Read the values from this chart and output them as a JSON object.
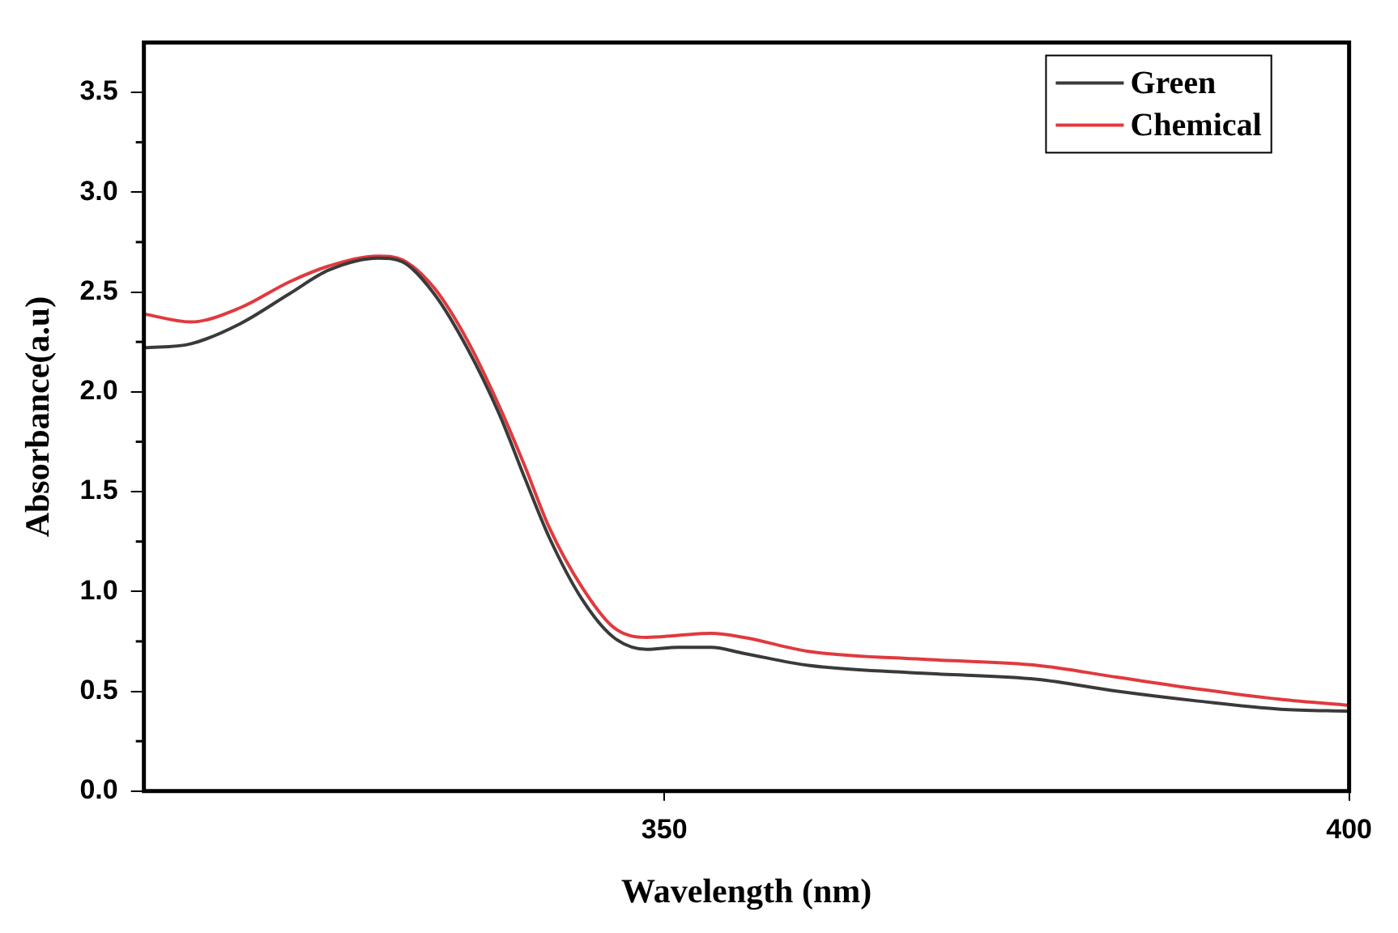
{
  "chart_data": {
    "type": "line",
    "xlabel": "Wavelength (nm)",
    "ylabel": "Absorbance(a.u)",
    "x": [
      312,
      315.4,
      319,
      322.6,
      325.5,
      329.1,
      330.9,
      333.2,
      335.6,
      338,
      339.8,
      341.6,
      344,
      346.3,
      348.7,
      351,
      353.4,
      355.8,
      360.5,
      368.9,
      377.2,
      383.1,
      389.1,
      395,
      400
    ],
    "xlim": [
      312,
      400
    ],
    "xticks": [
      350,
      400
    ],
    "ylim": [
      0,
      3.75
    ],
    "yticks": [
      {
        "value": 0,
        "label": "0.0"
      },
      0.5,
      {
        "value": 1,
        "label": "1.0"
      },
      1.5,
      {
        "value": 2,
        "label": "2.0"
      },
      2.5,
      {
        "value": 3,
        "label": "3.0"
      },
      3.5
    ],
    "grid": false,
    "legend": "top right",
    "marker": "none",
    "line_style": "solid",
    "series": [
      {
        "name": "Green",
        "color": "#3a3a3a",
        "values": [
          2.22,
          2.24,
          2.34,
          2.49,
          2.61,
          2.67,
          2.65,
          2.49,
          2.22,
          1.88,
          1.57,
          1.27,
          0.96,
          0.77,
          0.71,
          0.72,
          0.72,
          0.69,
          0.63,
          0.59,
          0.56,
          0.5,
          0.45,
          0.41,
          0.4
        ]
      },
      {
        "name": "Chemical",
        "color": "#e03a3e",
        "values": [
          2.39,
          2.35,
          2.42,
          2.55,
          2.63,
          2.68,
          2.66,
          2.52,
          2.26,
          1.92,
          1.63,
          1.32,
          1.02,
          0.82,
          0.77,
          0.78,
          0.79,
          0.77,
          0.7,
          0.66,
          0.63,
          0.57,
          0.51,
          0.46,
          0.43
        ]
      }
    ]
  }
}
